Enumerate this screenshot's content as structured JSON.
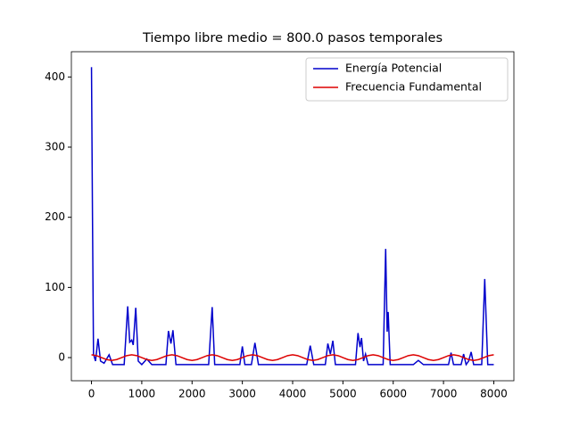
{
  "chart_data": {
    "type": "line",
    "title": "Tiempo libre medio = 800.0 pasos temporales",
    "series": [
      {
        "name": "Energía Potencial",
        "color": "#0000cc",
        "x": [
          0,
          20,
          40,
          80,
          130,
          180,
          250,
          350,
          420,
          650,
          720,
          760,
          800,
          830,
          880,
          930,
          1000,
          1100,
          1200,
          1480,
          1530,
          1580,
          1620,
          1680,
          2330,
          2400,
          2450,
          2950,
          3000,
          3050,
          3180,
          3250,
          3320,
          3700,
          4280,
          4350,
          4420,
          4650,
          4700,
          4750,
          4800,
          4850,
          5250,
          5300,
          5340,
          5370,
          5410,
          5450,
          5500,
          5800,
          5850,
          5880,
          5900,
          5940,
          6400,
          6500,
          6600,
          7100,
          7150,
          7200,
          7350,
          7400,
          7450,
          7500,
          7550,
          7600,
          7760,
          7820,
          7880,
          8000
        ],
        "values": [
          414,
          200,
          5,
          -5,
          27,
          -5,
          -8,
          4,
          -10,
          -10,
          73,
          22,
          25,
          18,
          71,
          -5,
          -10,
          -2,
          -10,
          -10,
          38,
          20,
          39,
          -10,
          -10,
          72,
          -10,
          -10,
          16,
          -10,
          -10,
          21,
          -10,
          -10,
          -10,
          17,
          -10,
          -10,
          20,
          5,
          24,
          -10,
          -10,
          35,
          15,
          28,
          -5,
          5,
          -10,
          -10,
          155,
          37,
          65,
          -10,
          -10,
          -4,
          -10,
          -10,
          7,
          -10,
          -10,
          5,
          -10,
          -5,
          8,
          -10,
          -10,
          112,
          -10,
          -10
        ]
      },
      {
        "name": "Frecuencia Fundamental",
        "color": "#dd0000",
        "x": [
          0,
          100,
          200,
          300,
          400,
          500,
          600,
          700,
          800,
          900,
          1000,
          1100,
          1200,
          1300,
          1400,
          1500,
          1600,
          1700,
          1800,
          1900,
          2000,
          2100,
          2200,
          2300,
          2400,
          2500,
          2600,
          2700,
          2800,
          2900,
          3000,
          3100,
          3200,
          3300,
          3400,
          3500,
          3600,
          3700,
          3800,
          3900,
          4000,
          4100,
          4200,
          4300,
          4400,
          4500,
          4600,
          4700,
          4800,
          4900,
          5000,
          5100,
          5200,
          5300,
          5400,
          5500,
          5600,
          5700,
          5800,
          5900,
          6000,
          6100,
          6200,
          6300,
          6400,
          6500,
          6600,
          6700,
          6800,
          6900,
          7000,
          7100,
          7200,
          7300,
          7400,
          7500,
          7600,
          7700,
          7800,
          7900,
          8000
        ],
        "values": [
          4,
          2.8,
          0,
          -2.8,
          -4,
          -2.8,
          0,
          2.8,
          4,
          2.8,
          0,
          -2.8,
          -4,
          -2.8,
          0,
          2.8,
          4,
          2.8,
          0,
          -2.8,
          -4,
          -2.8,
          0,
          2.8,
          4,
          2.8,
          0,
          -2.8,
          -4,
          -2.8,
          0,
          2.8,
          4,
          2.8,
          0,
          -2.8,
          -4,
          -2.8,
          0,
          2.8,
          4,
          2.8,
          0,
          -2.8,
          -4,
          -2.8,
          0,
          2.8,
          4,
          2.8,
          0,
          -2.8,
          -4,
          -2.8,
          0,
          2.8,
          4,
          2.8,
          0,
          -2.8,
          -4,
          -2.8,
          0,
          2.8,
          4,
          2.8,
          0,
          -2.8,
          -4,
          -2.8,
          0,
          2.8,
          4,
          2.8,
          0,
          -2.8,
          -4,
          -2.8,
          0,
          2.8,
          4
        ]
      }
    ],
    "xlim": [
      -400,
      8400
    ],
    "xticks": [
      0,
      1000,
      2000,
      3000,
      4000,
      5000,
      6000,
      7000,
      8000
    ],
    "ylim": [
      -33,
      436
    ],
    "yticks": [
      0,
      100,
      200,
      300,
      400
    ],
    "legend": "upper right",
    "grid": false
  }
}
